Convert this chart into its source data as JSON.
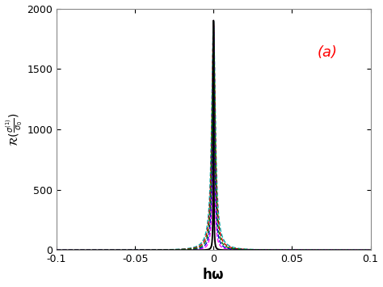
{
  "title": "(a)",
  "xlabel": "$\\mathbf{\\hbar}\\omega$",
  "ylabel": "$\\mathcal{R}(\\frac{\\sigma^{(1)}}{\\sigma_0})$",
  "xlim": [
    -0.1,
    0.1
  ],
  "ylim": [
    0,
    2000
  ],
  "yticks": [
    0,
    500,
    1000,
    1500,
    2000
  ],
  "xticks": [
    -0.1,
    -0.05,
    0,
    0.05,
    0.1
  ],
  "background_color": "#ffffff",
  "curves": [
    {
      "gamma": 0.00018,
      "amplitude": 1900,
      "color": "#000000",
      "lw": 1.4,
      "ls": "-",
      "zorder": 10
    },
    {
      "gamma": 0.0006,
      "amplitude": 1900,
      "color": "#ff00ff",
      "lw": 1.0,
      "ls": "--",
      "zorder": 6
    },
    {
      "gamma": 0.0008,
      "amplitude": 1900,
      "color": "#0000cc",
      "lw": 1.0,
      "ls": "--",
      "zorder": 7
    },
    {
      "gamma": 0.001,
      "amplitude": 1900,
      "color": "#007700",
      "lw": 1.0,
      "ls": "--",
      "zorder": 8
    },
    {
      "gamma": 0.0012,
      "amplitude": 1900,
      "color": "#cc0000",
      "lw": 1.0,
      "ls": "--",
      "zorder": 5
    },
    {
      "gamma": 0.0014,
      "amplitude": 1900,
      "color": "#00aaaa",
      "lw": 1.0,
      "ls": "--",
      "zorder": 4
    }
  ]
}
